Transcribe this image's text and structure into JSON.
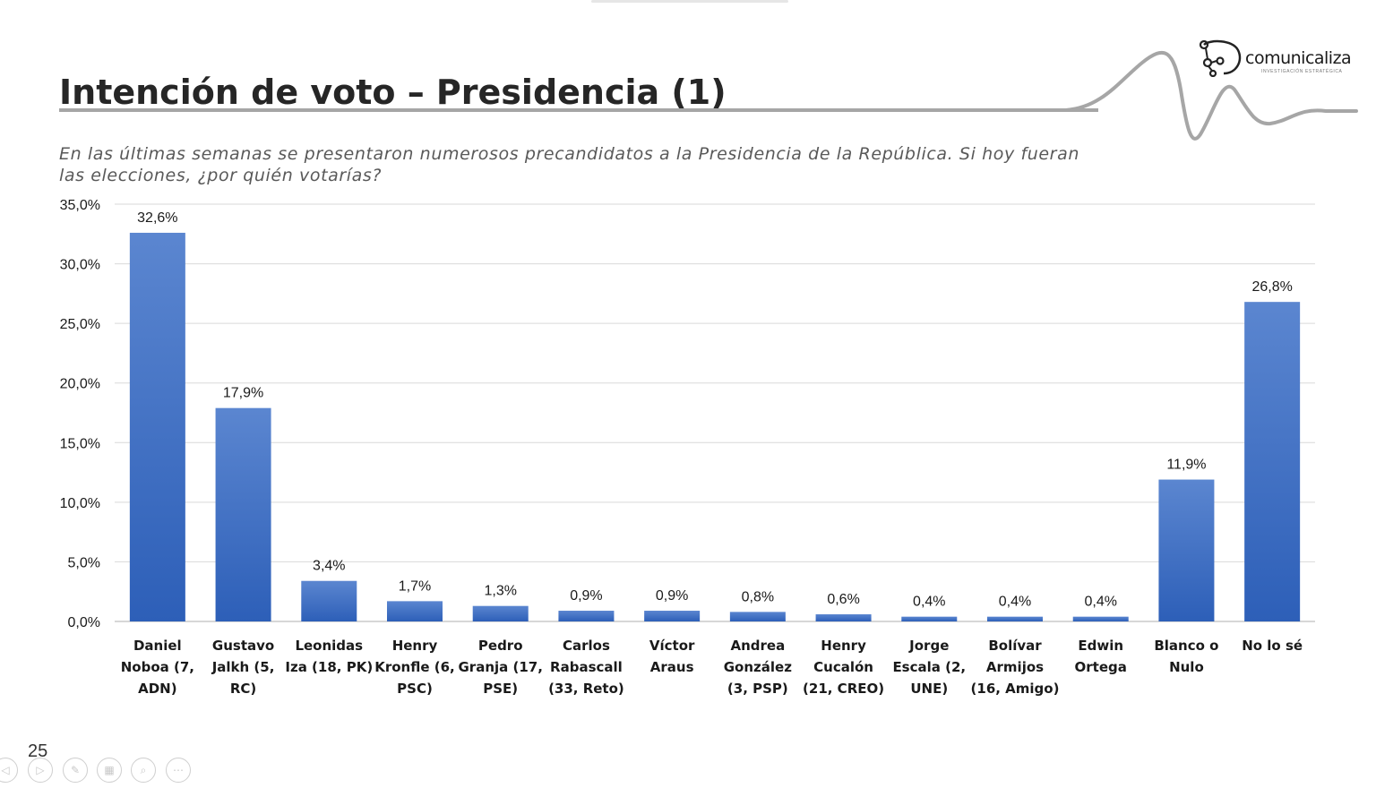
{
  "slide": {
    "title": "Intención de voto – Presidencia (1)",
    "subtitle": "En las últimas semanas se presentaron numerosos precandidatos a la Presidencia de la República. Si hoy fueran las elecciones, ¿por quién votarías?",
    "page_number": "25"
  },
  "logo": {
    "name": "comunicaliza",
    "tagline": "INVESTIGACIÓN ESTRATÉGICA"
  },
  "controls": [
    {
      "icon": "previous-icon",
      "glyph": "◁"
    },
    {
      "icon": "next-icon",
      "glyph": "▷"
    },
    {
      "icon": "pen-icon",
      "glyph": "✎"
    },
    {
      "icon": "slides-icon",
      "glyph": "▦"
    },
    {
      "icon": "zoom-icon",
      "glyph": "⌕"
    },
    {
      "icon": "more-icon",
      "glyph": "⋯"
    }
  ],
  "colors": {
    "bar_top": "#5b86d0",
    "bar_bottom": "#2d5fb8",
    "grid": "#d9d9d9",
    "wave": "#a6a6a6"
  },
  "chart_data": {
    "type": "bar",
    "categories": [
      [
        "Daniel",
        "Noboa (7,",
        "ADN)"
      ],
      [
        "Gustavo",
        "Jalkh (5,",
        "RC)"
      ],
      [
        "Leonidas",
        "Iza (18, PK)"
      ],
      [
        "Henry",
        "Kronfle (6,",
        "PSC)"
      ],
      [
        "Pedro",
        "Granja (17,",
        "PSE)"
      ],
      [
        "Carlos",
        "Rabascall",
        "(33, Reto)"
      ],
      [
        "Víctor",
        "Araus"
      ],
      [
        "Andrea",
        "González",
        "(3, PSP)"
      ],
      [
        "Henry",
        "Cucalón",
        "(21, CREO)"
      ],
      [
        "Jorge",
        "Escala (2,",
        "UNE)"
      ],
      [
        "Bolívar",
        "Armijos",
        "(16, Amigo)"
      ],
      [
        "Edwin",
        "Ortega"
      ],
      [
        "Blanco o",
        "Nulo"
      ],
      [
        "No lo sé"
      ]
    ],
    "values": [
      32.6,
      17.9,
      3.4,
      1.7,
      1.3,
      0.9,
      0.9,
      0.8,
      0.6,
      0.4,
      0.4,
      0.4,
      11.9,
      26.8
    ],
    "data_labels": [
      "32,6%",
      "17,9%",
      "3,4%",
      "1,7%",
      "1,3%",
      "0,9%",
      "0,9%",
      "0,8%",
      "0,6%",
      "0,4%",
      "0,4%",
      "0,4%",
      "11,9%",
      "26,8%"
    ],
    "ylim": [
      0,
      35
    ],
    "yticks": [
      0,
      5,
      10,
      15,
      20,
      25,
      30,
      35
    ],
    "ytick_labels": [
      "0,0%",
      "5,0%",
      "10,0%",
      "15,0%",
      "20,0%",
      "25,0%",
      "30,0%",
      "35,0%"
    ],
    "grid": true,
    "legend": "none"
  }
}
